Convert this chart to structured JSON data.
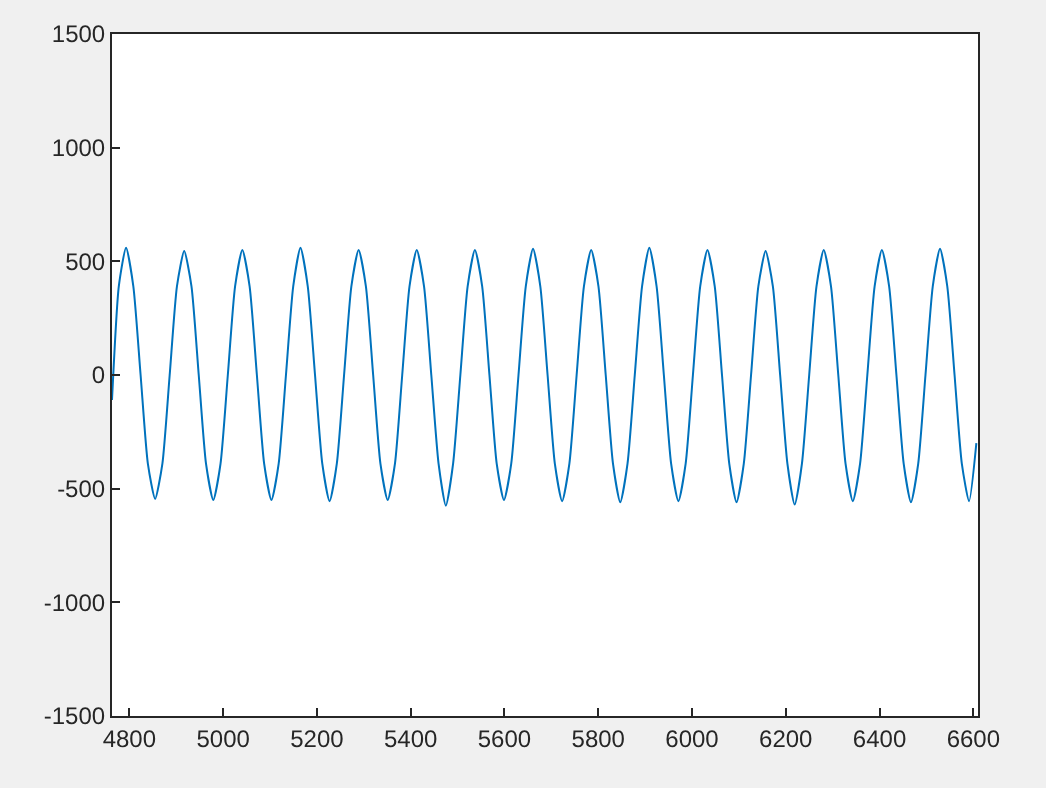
{
  "chart_data": {
    "type": "line",
    "xlim": [
      4763,
      6610
    ],
    "ylim": [
      -1500,
      1500
    ],
    "xticks": [
      4800,
      5000,
      5200,
      5400,
      5600,
      5800,
      6000,
      6200,
      6400,
      6600
    ],
    "yticks": [
      -1500,
      -1000,
      -500,
      0,
      500,
      1000,
      1500
    ],
    "grid": false,
    "legend": false,
    "marker": "none",
    "line_style": "solid",
    "x": [
      4763,
      4777.5,
      4793,
      4808.5,
      4824,
      4839.5,
      4855,
      4870.5,
      4886,
      4901.5,
      4917,
      4932.5,
      4948,
      4963.5,
      4979,
      4994.5,
      5010,
      5025.5,
      5041,
      5056.5,
      5072,
      5087.5,
      5103,
      5118.5,
      5134,
      5149.5,
      5165,
      5180.5,
      5196,
      5211.5,
      5227,
      5242.5,
      5258,
      5273.5,
      5289,
      5304.5,
      5320,
      5335.5,
      5351,
      5366.5,
      5382,
      5397.5,
      5413,
      5428.5,
      5444,
      5459.5,
      5475,
      5490.5,
      5506,
      5521.5,
      5537,
      5552.5,
      5568,
      5583.5,
      5599,
      5614.5,
      5630,
      5645.5,
      5661,
      5676.5,
      5692,
      5707.5,
      5723,
      5738.5,
      5754,
      5769.5,
      5785,
      5800.5,
      5816,
      5831.5,
      5847,
      5862.5,
      5878,
      5893.5,
      5909,
      5924.5,
      5940,
      5955.5,
      5971,
      5986.5,
      6002,
      6017.5,
      6033,
      6048.5,
      6064,
      6079.5,
      6095,
      6110.5,
      6126,
      6141.5,
      6157,
      6172.5,
      6188,
      6203.5,
      6219,
      6234.5,
      6250,
      6265.5,
      6281,
      6296.5,
      6312,
      6327.5,
      6343,
      6358.5,
      6374,
      6389.5,
      6405,
      6420.5,
      6436,
      6451.5,
      6467,
      6482.5,
      6498,
      6513.5,
      6529,
      6544.5,
      6560,
      6575.5,
      6591,
      6606.5
    ],
    "series": [
      {
        "color": "#0072bd",
        "values": [
          -110,
          390,
          560,
          390,
          0,
          -390,
          -545,
          -390,
          0,
          390,
          545,
          390,
          0,
          -390,
          -550,
          -390,
          0,
          390,
          550,
          390,
          0,
          -390,
          -550,
          -390,
          0,
          390,
          560,
          390,
          0,
          -390,
          -555,
          -390,
          0,
          390,
          550,
          390,
          0,
          -390,
          -550,
          -390,
          0,
          390,
          550,
          390,
          0,
          -390,
          -575,
          -390,
          0,
          390,
          550,
          390,
          0,
          -390,
          -550,
          -390,
          0,
          390,
          555,
          390,
          0,
          -390,
          -555,
          -390,
          0,
          390,
          550,
          390,
          0,
          -390,
          -560,
          -390,
          0,
          390,
          560,
          390,
          0,
          -390,
          -555,
          -390,
          0,
          390,
          550,
          390,
          0,
          -390,
          -560,
          -390,
          0,
          390,
          545,
          390,
          0,
          -390,
          -570,
          -390,
          0,
          390,
          550,
          390,
          0,
          -390,
          -555,
          -390,
          0,
          390,
          550,
          390,
          0,
          -390,
          -560,
          -390,
          0,
          390,
          555,
          390,
          0,
          -390,
          -555,
          -300
        ]
      }
    ]
  }
}
